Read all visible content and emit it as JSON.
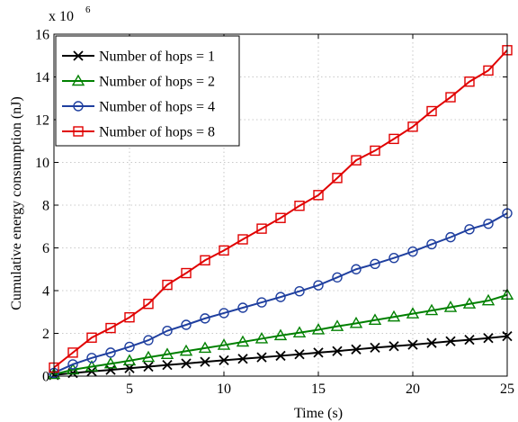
{
  "chart_data": {
    "type": "line",
    "xlabel": "Time (s)",
    "ylabel": "Cumulative energy consumption (nJ)",
    "scale_label": "x 10",
    "scale_exponent": "6",
    "xlim": [
      1,
      25
    ],
    "ylim": [
      0,
      16
    ],
    "xticks": [
      "5",
      "10",
      "15",
      "20",
      "25"
    ],
    "yticks": [
      "0",
      "2",
      "4",
      "6",
      "8",
      "10",
      "12",
      "14",
      "16"
    ],
    "grid": true,
    "legend_position": "top-left",
    "x": [
      1,
      2,
      3,
      4,
      5,
      6,
      7,
      8,
      9,
      10,
      11,
      12,
      13,
      14,
      15,
      16,
      17,
      18,
      19,
      20,
      21,
      22,
      23,
      24,
      25
    ],
    "series": [
      {
        "name": "Number of hops = 1",
        "color": "#000000",
        "marker": "x",
        "values": [
          0.05,
          0.14,
          0.22,
          0.29,
          0.37,
          0.44,
          0.52,
          0.59,
          0.67,
          0.74,
          0.81,
          0.88,
          0.95,
          1.02,
          1.1,
          1.17,
          1.25,
          1.33,
          1.4,
          1.47,
          1.55,
          1.63,
          1.7,
          1.78,
          1.87
        ]
      },
      {
        "name": "Number of hops = 2",
        "color": "#008000",
        "marker": "triangle",
        "values": [
          0.08,
          0.3,
          0.44,
          0.58,
          0.72,
          0.88,
          1.02,
          1.17,
          1.31,
          1.45,
          1.6,
          1.75,
          1.9,
          2.03,
          2.17,
          2.33,
          2.47,
          2.62,
          2.77,
          2.92,
          3.07,
          3.22,
          3.38,
          3.53,
          3.8
        ]
      },
      {
        "name": "Number of hops = 4",
        "color": "#1f3f9f",
        "marker": "circle",
        "values": [
          0.15,
          0.55,
          0.85,
          1.1,
          1.37,
          1.68,
          2.12,
          2.4,
          2.7,
          2.95,
          3.2,
          3.45,
          3.7,
          3.97,
          4.25,
          4.62,
          5.0,
          5.25,
          5.53,
          5.83,
          6.17,
          6.5,
          6.87,
          7.13,
          7.62
        ]
      },
      {
        "name": "Number of hops = 8",
        "color": "#e00000",
        "marker": "square",
        "values": [
          0.4,
          1.1,
          1.8,
          2.25,
          2.75,
          3.38,
          4.27,
          4.82,
          5.42,
          5.88,
          6.4,
          6.9,
          7.4,
          7.97,
          8.47,
          9.27,
          10.1,
          10.55,
          11.1,
          11.67,
          12.4,
          13.05,
          13.78,
          14.3,
          15.25
        ]
      }
    ]
  }
}
